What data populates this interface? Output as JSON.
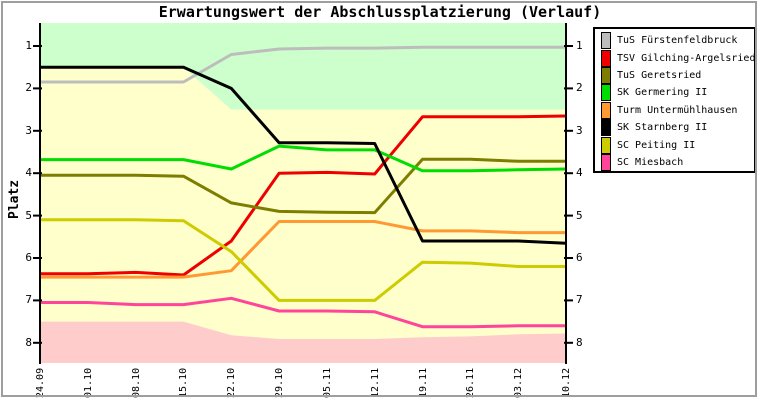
{
  "window": {
    "background": "#ffffff",
    "frame_color": "#9e9e9e"
  },
  "chart_data": {
    "type": "line",
    "title": "Erwartungswert der Abschlussplatzierung (Verlauf)",
    "ylabel": "Platz",
    "x_labels": [
      "24.09",
      "01.10",
      "08.10",
      "15.10",
      "22.10",
      "29.10",
      "05.11",
      "12.11",
      "19.11",
      "26.11",
      "03.12",
      "10.12"
    ],
    "y_ticks": [
      "1",
      "2",
      "3",
      "4",
      "5",
      "6",
      "7",
      "8"
    ],
    "y_axis_range": [
      0.46,
      8.48
    ],
    "y_inverted": true,
    "grid": false,
    "legend_position": "top-right",
    "plot_bg": "#ffffcc",
    "axis_color": "#000000",
    "zones": {
      "promotion_green": {
        "color": "#ccffcc",
        "side": "top",
        "boundary": [
          1.5,
          1.5,
          1.5,
          1.5,
          2.5,
          2.5,
          2.5,
          2.5,
          2.5,
          2.5,
          2.5,
          2.5
        ]
      },
      "relegation_pink": {
        "color": "#ffcccc",
        "side": "bottom",
        "boundary": [
          7.5,
          7.5,
          7.5,
          7.5,
          7.82,
          7.91,
          7.91,
          7.91,
          7.87,
          7.85,
          7.8,
          7.78
        ]
      }
    },
    "series": [
      {
        "name": "TuS Fürstenfeldbruck",
        "color": "#bdbdbd",
        "values": [
          1.85,
          1.85,
          1.85,
          1.85,
          1.2,
          1.07,
          1.05,
          1.05,
          1.03,
          1.03,
          1.03,
          1.03
        ]
      },
      {
        "name": "TSV Gilching-Argelsried",
        "color": "#ee0000",
        "values": [
          6.37,
          6.37,
          6.34,
          6.4,
          5.6,
          4.0,
          3.98,
          4.02,
          2.67,
          2.67,
          2.67,
          2.65
        ]
      },
      {
        "name": "TuS Geretsried",
        "color": "#7d7d00",
        "values": [
          4.05,
          4.05,
          4.05,
          4.07,
          4.7,
          4.9,
          4.92,
          4.93,
          3.67,
          3.67,
          3.72,
          3.72
        ]
      },
      {
        "name": "SK Germering II",
        "color": "#00dd00",
        "values": [
          3.68,
          3.68,
          3.68,
          3.68,
          3.9,
          3.36,
          3.45,
          3.45,
          3.94,
          3.94,
          3.92,
          3.9
        ]
      },
      {
        "name": "Turm Untermühlhausen",
        "color": "#ff9933",
        "values": [
          6.45,
          6.45,
          6.45,
          6.45,
          6.3,
          5.14,
          5.14,
          5.14,
          5.36,
          5.36,
          5.4,
          5.4
        ]
      },
      {
        "name": "SK Starnberg II",
        "color": "#000000",
        "values": [
          1.5,
          1.5,
          1.5,
          1.5,
          2.0,
          3.28,
          3.28,
          3.3,
          5.6,
          5.6,
          5.6,
          5.65
        ]
      },
      {
        "name": "SC Peiting II",
        "color": "#cccc00",
        "values": [
          5.1,
          5.1,
          5.1,
          5.12,
          5.85,
          7.0,
          7.0,
          7.0,
          6.1,
          6.12,
          6.2,
          6.2
        ]
      },
      {
        "name": "SC Miesbach",
        "color": "#ff4499",
        "values": [
          7.05,
          7.05,
          7.1,
          7.1,
          6.95,
          7.25,
          7.25,
          7.27,
          7.62,
          7.62,
          7.6,
          7.6
        ]
      }
    ]
  }
}
